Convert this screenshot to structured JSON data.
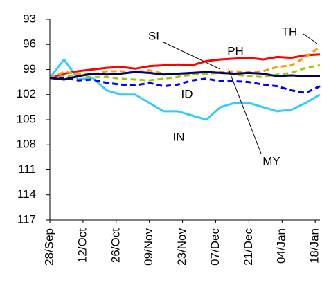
{
  "chart_data": {
    "type": "line",
    "x": [
      0,
      6,
      12,
      18,
      24,
      30,
      36,
      42,
      48,
      54,
      60,
      66,
      72,
      78,
      84,
      90,
      96,
      102,
      108,
      114
    ],
    "xlim": [
      0,
      114
    ],
    "xticks": [
      {
        "value": 0,
        "label": "28/Sep"
      },
      {
        "value": 14,
        "label": "12/Oct"
      },
      {
        "value": 28,
        "label": "26/Oct"
      },
      {
        "value": 42,
        "label": "09/Nov"
      },
      {
        "value": 56,
        "label": "23/Nov"
      },
      {
        "value": 70,
        "label": "07/Dec"
      },
      {
        "value": 84,
        "label": "21/Dec"
      },
      {
        "value": 98,
        "label": "04/Jan"
      },
      {
        "value": 112,
        "label": "18/Jan"
      }
    ],
    "ylim": [
      93,
      117
    ],
    "yticks": [
      93,
      96,
      99,
      102,
      105,
      108,
      111,
      114,
      117
    ],
    "y_inverted": true,
    "grid": false,
    "series": [
      {
        "name": "IN",
        "color": "#33ccff",
        "dashed": false,
        "values": [
          100,
          97.8,
          100.2,
          100,
          101.5,
          102,
          102,
          103,
          104,
          104,
          104.5,
          105,
          103.5,
          103,
          103,
          103.5,
          104,
          103.8,
          103,
          102
        ]
      },
      {
        "name": "PH",
        "color": "#ff0000",
        "dashed": false,
        "values": [
          100,
          99.5,
          99.2,
          99,
          98.8,
          98.7,
          98.9,
          98.6,
          98.5,
          98.4,
          98.5,
          98,
          97.8,
          97.7,
          97.6,
          97.8,
          97.5,
          97.6,
          97.3,
          97.2
        ]
      },
      {
        "name": "TH",
        "color": "#ff9900",
        "dashed": true,
        "values": [
          100,
          99.3,
          99.5,
          99.6,
          99.2,
          99.2,
          99.3,
          99.1,
          99.5,
          99.6,
          99.5,
          99.3,
          99.3,
          99.2,
          99.3,
          99.2,
          98.7,
          98.5,
          97.5,
          96.3
        ]
      },
      {
        "name": "MY",
        "color": "#99cc00",
        "dashed": true,
        "values": [
          100,
          99.8,
          99.8,
          99.9,
          99.9,
          100.1,
          100.2,
          100.3,
          100.1,
          99.9,
          99.6,
          99.5,
          99.4,
          99.6,
          99.8,
          99.9,
          99.6,
          99.4,
          98.8,
          98.5
        ]
      },
      {
        "name": "ID",
        "color": "#0000ff",
        "dashed": true,
        "values": [
          100,
          100,
          100.3,
          100.2,
          100.6,
          100.8,
          100.9,
          100.6,
          101,
          100.8,
          100.3,
          100.1,
          100.4,
          100.4,
          100.5,
          100.8,
          101,
          101.5,
          101.8,
          101
        ]
      },
      {
        "name": "SI",
        "color": "#000066",
        "dashed": false,
        "values": [
          100,
          100.2,
          99.8,
          99.5,
          99.6,
          99.5,
          99.3,
          99.4,
          99.6,
          99.5,
          99.4,
          99.3,
          99.4,
          99.5,
          99.4,
          99.5,
          99.8,
          99.7,
          99.8,
          99.8
        ]
      }
    ]
  }
}
